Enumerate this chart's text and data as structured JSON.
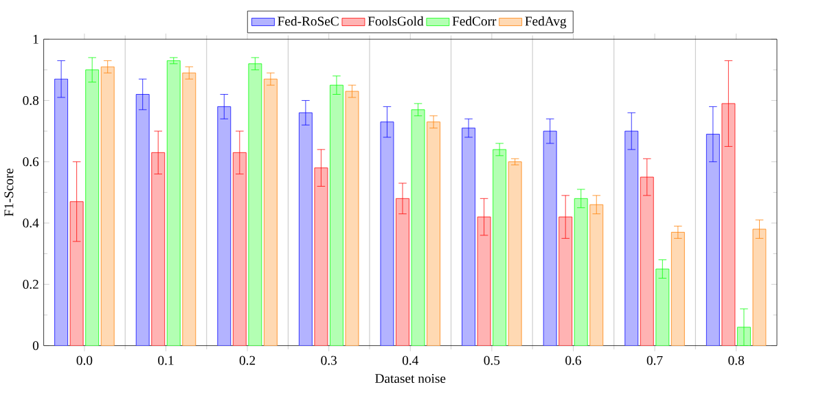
{
  "chart_data": {
    "type": "bar",
    "xlabel": "Dataset noise",
    "ylabel": "F1-Score",
    "categories": [
      "0.0",
      "0.1",
      "0.2",
      "0.3",
      "0.4",
      "0.5",
      "0.6",
      "0.7",
      "0.8"
    ],
    "series": [
      {
        "name": "Fed-RoSeC",
        "color": "#b3b3ff",
        "values": [
          0.87,
          0.82,
          0.78,
          0.76,
          0.73,
          0.71,
          0.7,
          0.7,
          0.69
        ],
        "errors": [
          0.06,
          0.05,
          0.04,
          0.04,
          0.05,
          0.03,
          0.04,
          0.06,
          0.09
        ]
      },
      {
        "name": "FoolsGold",
        "color": "#ffb3b3",
        "values": [
          0.47,
          0.63,
          0.63,
          0.58,
          0.48,
          0.42,
          0.42,
          0.55,
          0.79
        ],
        "errors": [
          0.13,
          0.07,
          0.07,
          0.06,
          0.05,
          0.06,
          0.07,
          0.06,
          0.14
        ]
      },
      {
        "name": "FedCorr",
        "color": "#b3ffb3",
        "values": [
          0.9,
          0.93,
          0.92,
          0.85,
          0.77,
          0.64,
          0.48,
          0.25,
          0.06
        ],
        "errors": [
          0.04,
          0.01,
          0.02,
          0.03,
          0.02,
          0.02,
          0.03,
          0.03,
          0.06
        ]
      },
      {
        "name": "FedAvg",
        "color": "#ffd9b3",
        "values": [
          0.91,
          0.89,
          0.87,
          0.83,
          0.73,
          0.6,
          0.46,
          0.37,
          0.38
        ],
        "errors": [
          0.02,
          0.02,
          0.02,
          0.02,
          0.02,
          0.01,
          0.03,
          0.02,
          0.03
        ]
      }
    ],
    "ylim": [
      0,
      1
    ],
    "yticks": [
      0,
      0.2,
      0.4,
      0.6,
      0.8,
      1
    ],
    "grid": "x",
    "legend": "top"
  }
}
